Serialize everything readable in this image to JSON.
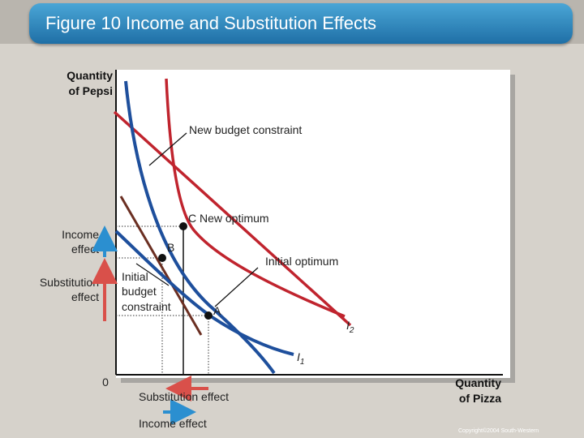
{
  "title": "Figure 10 Income and Substitution Effects",
  "axes": {
    "y_label_line1": "Quantity",
    "y_label_line2": "of Pepsi",
    "x_label_line1": "Quantity",
    "x_label_line2": "of Pizza",
    "origin": "0"
  },
  "labels": {
    "new_budget": "New budget constraint",
    "new_optimum": "C  New optimum",
    "point_b": "B",
    "point_a": "A",
    "initial_optimum": "Initial optimum",
    "initial_budget_1": "Initial",
    "initial_budget_2": "budget",
    "initial_budget_3": "constraint",
    "i2": "I",
    "i2_sub": "2",
    "i1": "I",
    "i1_sub": "1"
  },
  "left_effects": {
    "income_1": "Income",
    "income_2": "effect",
    "substitution_1": "Substitution",
    "substitution_2": "effect"
  },
  "bottom_effects": {
    "substitution": "Substitution effect",
    "income": "Income effect"
  },
  "copyright": "Copyright©2004  South-Western",
  "colors": {
    "budget": "#c0242e",
    "indifference": "#1e4f9c",
    "income_arrow": "#2b8fd0",
    "substitution_arrow": "#d9504a",
    "title_bar": "#2f86c0"
  }
}
